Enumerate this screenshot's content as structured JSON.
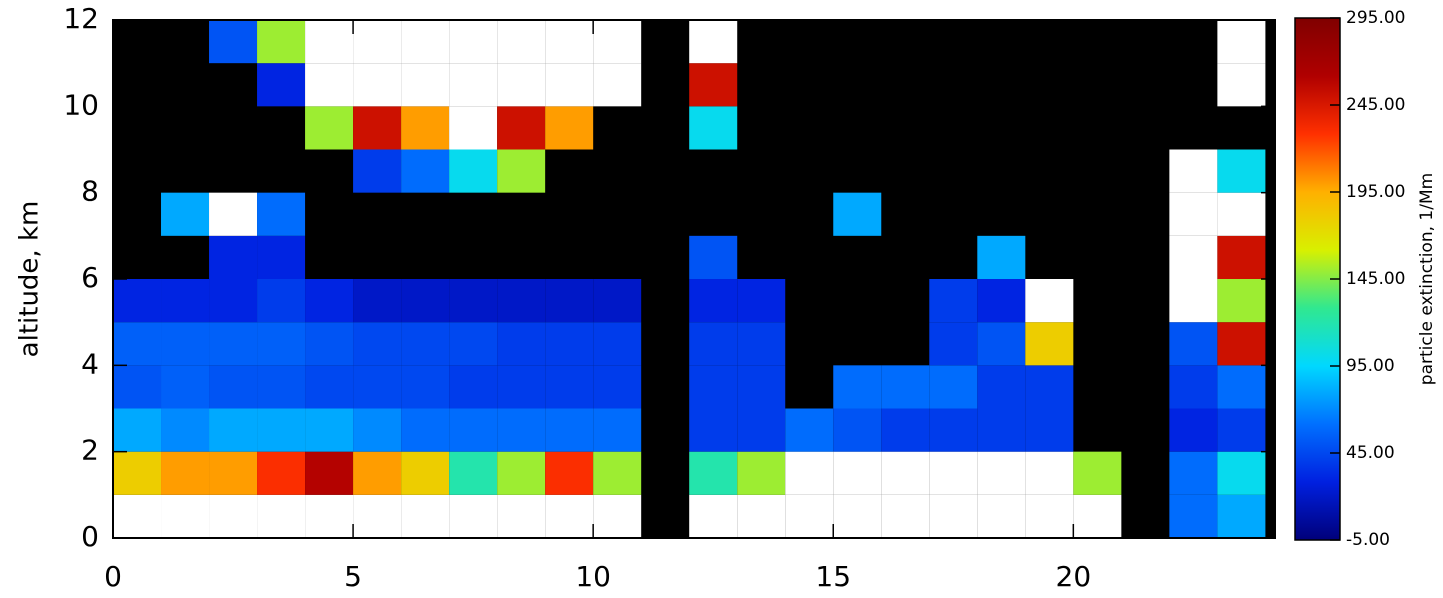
{
  "chart_data": {
    "type": "heatmap",
    "ylabel": "altitude, km",
    "colorbar_label": "particle extinction, 1/Mm",
    "x_edges": [
      0,
      1,
      2,
      3,
      4,
      5,
      6,
      7,
      8,
      9,
      10,
      11,
      12,
      13,
      14,
      15,
      16,
      17,
      18,
      19,
      20,
      21,
      22,
      23,
      24
    ],
    "y_edges": [
      0,
      1,
      2,
      3,
      4,
      5,
      6,
      7,
      8,
      9,
      10,
      11,
      12
    ],
    "xlim": [
      0,
      24.2
    ],
    "ylim": [
      0,
      12
    ],
    "xticks": [
      0,
      5,
      10,
      15,
      20
    ],
    "yticks": [
      0,
      2,
      4,
      6,
      8,
      10,
      12
    ],
    "zlim": [
      -5,
      295
    ],
    "cbar_ticks": [
      {
        "value": -5,
        "label": "-5.00"
      },
      {
        "value": 45,
        "label": "45.00"
      },
      {
        "value": 95,
        "label": "95.00"
      },
      {
        "value": 145,
        "label": "145.00"
      },
      {
        "value": 195,
        "label": "195.00"
      },
      {
        "value": 245,
        "label": "245.00"
      },
      {
        "value": 295,
        "label": "295.00"
      }
    ],
    "colormap": [
      "#00007a",
      "#0020e0",
      "#0070ff",
      "#00d8ff",
      "#30e890",
      "#d8f000",
      "#ffb000",
      "#ff3000",
      "#b00000",
      "#800000"
    ],
    "over_color": "#ffffff",
    "bad_color": "#000000",
    "z": [
      [
        300,
        300,
        300,
        300,
        350,
        320,
        320,
        300,
        300,
        300,
        320,
        null,
        320,
        320,
        300,
        300,
        300,
        300,
        300,
        300,
        300,
        null,
        60,
        80
      ],
      [
        180,
        200,
        200,
        230,
        260,
        200,
        180,
        120,
        150,
        230,
        150,
        null,
        120,
        150,
        330,
        320,
        300,
        300,
        330,
        330,
        150,
        null,
        60,
        100
      ],
      [
        80,
        70,
        80,
        80,
        80,
        70,
        60,
        60,
        60,
        60,
        60,
        null,
        40,
        40,
        60,
        50,
        40,
        40,
        40,
        40,
        null,
        null,
        30,
        40
      ],
      [
        50,
        55,
        50,
        50,
        45,
        45,
        45,
        40,
        40,
        40,
        40,
        null,
        40,
        40,
        null,
        60,
        60,
        60,
        40,
        40,
        null,
        null,
        40,
        60
      ],
      [
        55,
        55,
        55,
        55,
        50,
        45,
        45,
        45,
        40,
        40,
        40,
        null,
        40,
        40,
        null,
        null,
        null,
        40,
        50,
        180,
        null,
        null,
        50,
        250
      ],
      [
        30,
        30,
        30,
        40,
        30,
        20,
        20,
        20,
        20,
        20,
        20,
        null,
        30,
        30,
        null,
        null,
        null,
        40,
        30,
        400,
        null,
        null,
        400,
        150
      ],
      [
        null,
        null,
        30,
        30,
        null,
        null,
        null,
        null,
        null,
        null,
        null,
        null,
        50,
        null,
        null,
        null,
        null,
        null,
        80,
        null,
        null,
        null,
        400,
        250
      ],
      [
        null,
        80,
        350,
        60,
        null,
        null,
        null,
        null,
        null,
        null,
        null,
        null,
        null,
        null,
        null,
        80,
        null,
        null,
        null,
        null,
        null,
        null,
        400,
        300
      ],
      [
        null,
        null,
        null,
        null,
        null,
        40,
        60,
        100,
        150,
        null,
        null,
        null,
        null,
        null,
        null,
        null,
        null,
        null,
        null,
        null,
        null,
        null,
        400,
        100
      ],
      [
        null,
        null,
        null,
        null,
        150,
        250,
        200,
        300,
        250,
        200,
        null,
        null,
        100,
        null,
        null,
        null,
        null,
        null,
        null,
        null,
        null,
        null,
        null,
        null
      ],
      [
        null,
        null,
        null,
        30,
        350,
        400,
        400,
        400,
        400,
        400,
        400,
        null,
        250,
        null,
        null,
        null,
        null,
        null,
        null,
        null,
        null,
        null,
        null,
        400
      ],
      [
        null,
        null,
        50,
        150,
        400,
        400,
        400,
        400,
        400,
        400,
        400,
        null,
        400,
        null,
        null,
        null,
        null,
        null,
        null,
        null,
        null,
        null,
        null,
        400
      ]
    ]
  }
}
